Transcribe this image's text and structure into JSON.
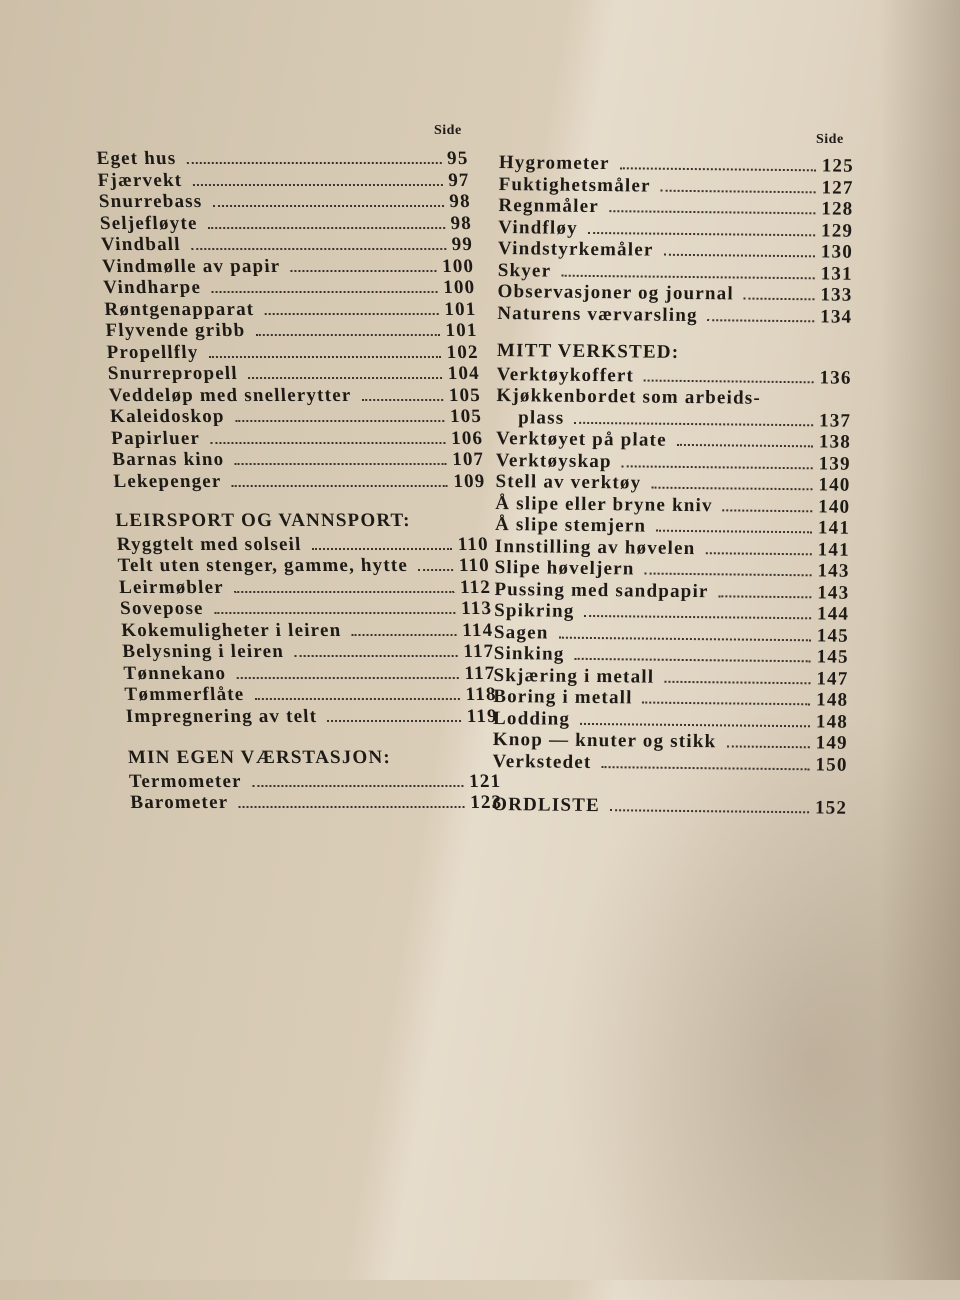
{
  "side_label_left": "Side",
  "side_label_right": "Side",
  "left": [
    {
      "entries": [
        {
          "title": "Eget hus",
          "page": "95"
        },
        {
          "title": "Fjærvekt",
          "page": "97"
        },
        {
          "title": "Snurrebass",
          "page": "98"
        },
        {
          "title": "Seljefløyte",
          "page": "98"
        },
        {
          "title": "Vindball",
          "page": "99"
        },
        {
          "title": "Vindmølle av papir",
          "page": "100"
        },
        {
          "title": "Vindharpe",
          "page": "100"
        },
        {
          "title": "Røntgenapparat",
          "page": "101"
        },
        {
          "title": "Flyvende gribb",
          "page": "101"
        },
        {
          "title": "Propellfly",
          "page": "102"
        },
        {
          "title": "Snurrepropell",
          "page": "104"
        },
        {
          "title": "Veddeløp med snellerytter",
          "page": "105"
        },
        {
          "title": "Kaleidoskop",
          "page": "105"
        },
        {
          "title": "Papirluer",
          "page": "106"
        },
        {
          "title": "Barnas kino",
          "page": "107"
        },
        {
          "title": "Lekepenger",
          "page": "109"
        }
      ]
    },
    {
      "heading": "LEIRSPORT OG VANNSPORT:",
      "entries": [
        {
          "title": "Ryggtelt med solseil",
          "page": "110"
        },
        {
          "title": "Telt uten stenger, gamme, hytte",
          "page": "110"
        },
        {
          "title": "Leirmøbler",
          "page": "112"
        },
        {
          "title": "Sovepose",
          "page": "113"
        },
        {
          "title": "Kokemuligheter i leiren",
          "page": "114"
        },
        {
          "title": "Belysning i leiren",
          "page": "117"
        },
        {
          "title": "Tønnekano",
          "page": "117"
        },
        {
          "title": "Tømmerflåte",
          "page": "118"
        },
        {
          "title": "Impregnering av telt",
          "page": "119"
        }
      ]
    },
    {
      "heading": "MIN EGEN VÆRSTASJON:",
      "entries": [
        {
          "title": "Termometer",
          "page": "121"
        },
        {
          "title": "Barometer",
          "page": "123"
        }
      ]
    }
  ],
  "right": [
    {
      "entries": [
        {
          "title": "Hygrometer",
          "page": "125"
        },
        {
          "title": "Fuktighetsmåler",
          "page": "127"
        },
        {
          "title": "Regnmåler",
          "page": "128"
        },
        {
          "title": "Vindfløy",
          "page": "129"
        },
        {
          "title": "Vindstyrkemåler",
          "page": "130"
        },
        {
          "title": "Skyer",
          "page": "131"
        },
        {
          "title": "Observasjoner og journal",
          "page": "133"
        },
        {
          "title": "Naturens værvarsling",
          "page": "134"
        }
      ]
    },
    {
      "heading": "MITT VERKSTED:",
      "entries": [
        {
          "title": "Verktøykoffert",
          "page": "136"
        },
        {
          "title": "Kjøkkenbordet som arbeids-",
          "page": ""
        },
        {
          "title": "plass",
          "page": "137",
          "continuation": true
        },
        {
          "title": "Verktøyet på plate",
          "page": "138"
        },
        {
          "title": "Verktøyskap",
          "page": "139"
        },
        {
          "title": "Stell av verktøy",
          "page": "140"
        },
        {
          "title": "Å slipe eller bryne kniv",
          "page": "140"
        },
        {
          "title": "Å slipe stemjern",
          "page": "141"
        },
        {
          "title": "Innstilling av høvelen",
          "page": "141"
        },
        {
          "title": "Slipe høveljern",
          "page": "143"
        },
        {
          "title": "Pussing med sandpapir",
          "page": "143"
        },
        {
          "title": "Spikring",
          "page": "144"
        },
        {
          "title": "Sagen",
          "page": "145"
        },
        {
          "title": "Sinking",
          "page": "145"
        },
        {
          "title": "Skjæring i metall",
          "page": "147"
        },
        {
          "title": "Boring i metall",
          "page": "148"
        },
        {
          "title": "Lodding",
          "page": "148"
        },
        {
          "title": "Knop — knuter og stikk",
          "page": "149"
        },
        {
          "title": "Verkstedet",
          "page": "150"
        }
      ]
    },
    {
      "entries": [
        {
          "title": "ORDLISTE",
          "page": "152"
        }
      ]
    }
  ]
}
